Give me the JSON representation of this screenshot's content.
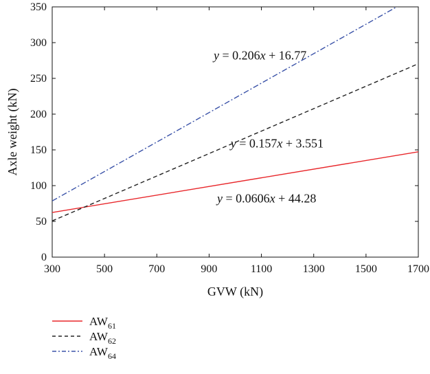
{
  "chart_data": {
    "type": "line",
    "xlabel": "GVW (kN)",
    "ylabel": "Axle weight (kN)",
    "xlim": [
      300,
      1700
    ],
    "ylim": [
      0,
      350
    ],
    "xticks": [
      300,
      500,
      700,
      900,
      1100,
      1300,
      1500,
      1700
    ],
    "yticks": [
      0,
      50,
      100,
      150,
      200,
      250,
      300,
      350
    ],
    "grid": false,
    "legend_placement": "below",
    "series": [
      {
        "name": "AW",
        "subscript": "61",
        "color": "#e8262a",
        "dash": "solid",
        "x": [
          300,
          1700
        ],
        "values": [
          62.46,
          147.3
        ]
      },
      {
        "name": "AW",
        "subscript": "62",
        "color": "#222222",
        "dash": "dashed",
        "x": [
          300,
          1700
        ],
        "values": [
          50.65,
          270.45
        ]
      },
      {
        "name": "AW",
        "subscript": "64",
        "color": "#3a52a8",
        "dash": "dashdot",
        "x": [
          300,
          1700
        ],
        "values": [
          78.57,
          366.97
        ]
      }
    ],
    "annotations": [
      {
        "parts": [
          "y",
          " = 0.206",
          "x",
          " + 16.77"
        ],
        "x": 1095,
        "y": 282
      },
      {
        "parts": [
          "y",
          " = 0.157",
          "x",
          " + 3.551"
        ],
        "x": 1160,
        "y": 159
      },
      {
        "parts": [
          "y",
          " = 0.0606",
          "x",
          " + 44.28"
        ],
        "x": 1120,
        "y": 82
      }
    ]
  }
}
